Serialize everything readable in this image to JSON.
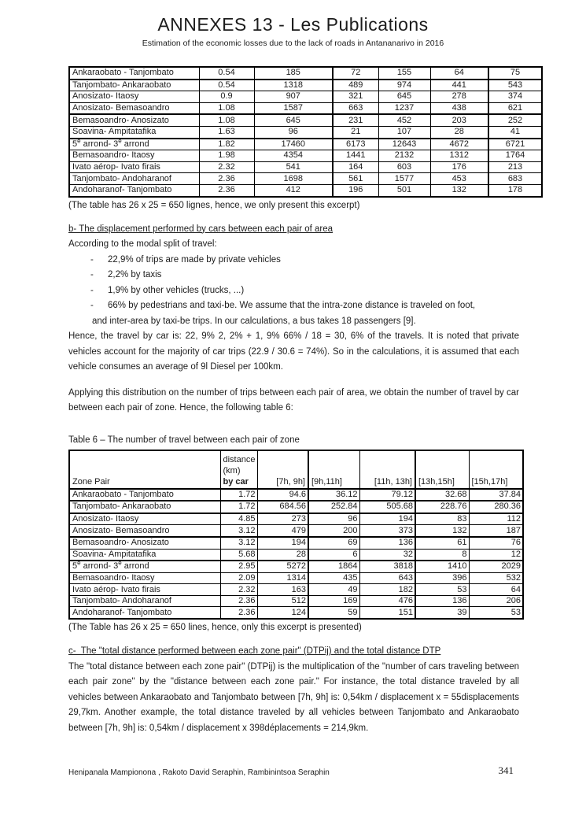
{
  "page": {
    "title": "ANNEXES 13 - Les Publications",
    "subtitle": "Estimation of the economic losses due to the lack of roads in Antananarivo in 2016",
    "footer_authors": "Henipanala Mampionona , Rakoto David Seraphin, Rambinintsoa Seraphin",
    "footer_page_number": "341"
  },
  "table5": {
    "caption": "(The table has 26 x 25 = 650 lignes, hence, we only present this excerpt)",
    "rows": [
      {
        "label": "Ankaraobato - Tanjombato",
        "values": [
          "0.54",
          "185",
          "72",
          "155",
          "64",
          "75"
        ]
      },
      {
        "label": "Tanjombato- Ankaraobato",
        "values": [
          "0.54",
          "1318",
          "489",
          "974",
          "441",
          "543"
        ]
      },
      {
        "label": "Anosizato- Itaosy",
        "values": [
          "0.9",
          "907",
          "321",
          "645",
          "278",
          "374"
        ]
      },
      {
        "label": "Anosizato- Bemasoandro",
        "values": [
          "1.08",
          "1587",
          "663",
          "1237",
          "438",
          "621"
        ]
      },
      {
        "label": "Bemasoandro- Anosizato",
        "values": [
          "1.08",
          "645",
          "231",
          "452",
          "203",
          "252"
        ]
      },
      {
        "label": "Soavina- Ampitatafika",
        "values": [
          "1.63",
          "96",
          "21",
          "107",
          "28",
          "41"
        ]
      },
      {
        "label": "5^e arrond- 3^e arrond",
        "values": [
          "1.82",
          "17460",
          "6173",
          "12643",
          "4672",
          "6721"
        ]
      },
      {
        "label": "Bemasoandro- Itaosy",
        "values": [
          "1.98",
          "4354",
          "1441",
          "2132",
          "1312",
          "1764"
        ]
      },
      {
        "label": "Ivato aérop- Ivato firais",
        "values": [
          "2.32",
          "541",
          "164",
          "603",
          "176",
          "213"
        ]
      },
      {
        "label": "Tanjombato- Andoharanof",
        "values": [
          "2.36",
          "1698",
          "561",
          "1577",
          "453",
          "683"
        ]
      },
      {
        "label": "Andoharanof- Tanjombato",
        "values": [
          "2.36",
          "412",
          "196",
          "501",
          "132",
          "178"
        ]
      }
    ]
  },
  "section_b": {
    "heading": "b- The displacement performed by cars between each pair of area",
    "intro": "According to the modal split of travel:",
    "bullets": [
      "22,9% of trips are made by private vehicles",
      "2,2% by taxis",
      "1,9% by other vehicles (trucks, ...)",
      "66% by pedestrians and taxi-be. We assume that the intra-zone distance is traveled on foot,"
    ],
    "bullet_continuation": "and inter-area by taxi-be trips. In our calculations, a bus takes 18 passengers [9].",
    "para1": "Hence, the travel by car is: 22, 9% 2, 2% + 1, 9% 66% / 18 = 30, 6% of the travels. It is noted that private vehicles account for the majority of car trips (22.9 / 30.6 = 74%). So in the calculations, it is assumed that each vehicle consumes an average of 9l Diesel per 100km.",
    "para2": "Applying this distribution on the number of trips between each pair of area, we obtain the number of travel by car between each pair of zone. Hence, the following table 6:"
  },
  "table6": {
    "caption_top": "Table 6 – The number of travel between each pair of zone",
    "headers": {
      "zone_pair": "Zone Pair",
      "distance_lines": [
        "distance",
        "(km)",
        "by car"
      ],
      "hours": [
        "[7h, 9h]",
        "[9h,11h]",
        "[11h, 13h]",
        "[13h,15h]",
        "[15h,17h]"
      ]
    },
    "rows": [
      {
        "label": "Ankaraobato - Tanjombato",
        "values": [
          "1.72",
          "94.6",
          "36.12",
          "79.12",
          "32.68",
          "37.84"
        ]
      },
      {
        "label": "Tanjombato- Ankaraobato",
        "values": [
          "1.72",
          "684.56",
          "252.84",
          "505.68",
          "228.76",
          "280.36"
        ]
      },
      {
        "label": "Anosizato- Itaosy",
        "values": [
          "4.85",
          "273",
          "96",
          "194",
          "83",
          "112"
        ]
      },
      {
        "label": "Anosizato- Bemasoandro",
        "values": [
          "3.12",
          "479",
          "200",
          "373",
          "132",
          "187"
        ]
      },
      {
        "label": "Bemasoandro- Anosizato",
        "values": [
          "3.12",
          "194",
          "69",
          "136",
          "61",
          "76"
        ]
      },
      {
        "label": "Soavina- Ampitatafika",
        "values": [
          "5.68",
          "28",
          "6",
          "32",
          "8",
          "12"
        ]
      },
      {
        "label": "5^e arrond- 3^e arrond",
        "values": [
          "2.95",
          "5272",
          "1864",
          "3818",
          "1410",
          "2029"
        ]
      },
      {
        "label": "Bemasoandro- Itaosy",
        "values": [
          "2.09",
          "1314",
          "435",
          "643",
          "396",
          "532"
        ]
      },
      {
        "label": "Ivato aérop- Ivato firais",
        "values": [
          "2.32",
          "163",
          "49",
          "182",
          "53",
          "64"
        ]
      },
      {
        "label": "Tanjombato- Andoharanof",
        "values": [
          "2.36",
          "512",
          "169",
          "476",
          "136",
          "206"
        ]
      },
      {
        "label": "Andoharanof- Tanjombato",
        "values": [
          "2.36",
          "124",
          "59",
          "151",
          "39",
          "53"
        ]
      }
    ],
    "caption_bottom": "(The Table has 26 x 25 = 650 lines, hence, only this excerpt is presented)"
  },
  "section_c": {
    "heading": "c-  The \"total distance performed between each zone pair\" (DTPij) and the total distance DTP",
    "para": "The \"total distance between each zone pair\" (DTPij) is the multiplication of the \"number of cars traveling between each pair zone\" by the \"distance between each zone pair.\" For instance, the total distance traveled by all vehicles between Ankaraobato and Tanjombato between [7h, 9h] is: 0,54km / displacement x = 55displacements 29,7km. Another example, the total distance traveled by all vehicles between Tanjombato and Ankaraobato between [7h, 9h] is: 0,54km / displacement x 398déplacements = 214,9km."
  }
}
